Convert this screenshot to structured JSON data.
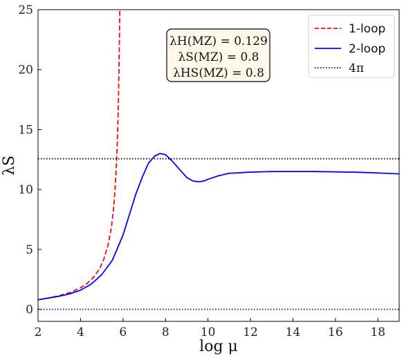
{
  "chart_data": {
    "type": "line",
    "xlabel": "log μ",
    "ylabel": "λS",
    "xlim": [
      2,
      19
    ],
    "ylim": [
      -1,
      25
    ],
    "x_ticks": [
      2,
      4,
      6,
      8,
      10,
      12,
      14,
      16,
      18
    ],
    "y_ticks": [
      0,
      5,
      10,
      15,
      20,
      25
    ],
    "grid": false,
    "legend_position": "top-right",
    "annotation": [
      "λH(MZ) = 0.129",
      "λS(MZ) = 0.8",
      "λHS(MZ) = 0.8"
    ],
    "series": [
      {
        "name": "1-loop",
        "color": "#ff0000",
        "style": "dashed",
        "x": [
          2.0,
          2.5,
          3.0,
          3.5,
          4.0,
          4.3,
          4.6,
          4.9,
          5.1,
          5.3,
          5.45,
          5.55,
          5.62,
          5.68,
          5.72,
          5.76,
          5.79,
          5.81,
          5.83,
          5.85
        ],
        "y": [
          0.8,
          0.95,
          1.15,
          1.4,
          1.8,
          2.15,
          2.65,
          3.4,
          4.2,
          5.4,
          6.8,
          8.3,
          9.9,
          11.7,
          13.4,
          15.6,
          18.0,
          20.0,
          22.5,
          25.0
        ]
      },
      {
        "name": "2-loop",
        "color": "#0000ff",
        "style": "solid",
        "x": [
          2.0,
          2.5,
          3.0,
          3.5,
          4.0,
          4.5,
          5.0,
          5.5,
          6.0,
          6.3,
          6.6,
          6.9,
          7.2,
          7.5,
          7.75,
          8.0,
          8.3,
          8.7,
          9.0,
          9.3,
          9.6,
          9.8,
          10.0,
          10.5,
          11.0,
          12.0,
          13.0,
          14.0,
          15.0,
          16.0,
          17.0,
          18.0,
          19.0
        ],
        "y": [
          0.8,
          0.95,
          1.1,
          1.3,
          1.6,
          2.1,
          2.9,
          4.1,
          6.2,
          7.9,
          9.6,
          11.0,
          12.2,
          12.8,
          13.0,
          12.9,
          12.4,
          11.6,
          11.0,
          10.7,
          10.65,
          10.7,
          10.85,
          11.15,
          11.35,
          11.45,
          11.5,
          11.5,
          11.5,
          11.47,
          11.44,
          11.38,
          11.3
        ]
      },
      {
        "name": "4π",
        "color": "#000000",
        "style": "dotted",
        "x": [
          2,
          19
        ],
        "y": [
          12.566,
          12.566
        ]
      },
      {
        "name": "",
        "color": "#0000ff",
        "style": "dotted",
        "x": [
          2,
          19
        ],
        "y": [
          0,
          0
        ]
      }
    ]
  }
}
